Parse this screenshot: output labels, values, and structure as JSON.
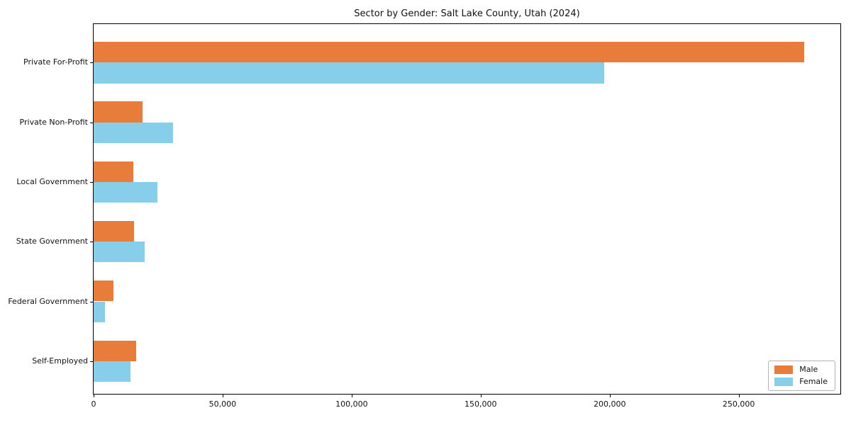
{
  "chart_data": {
    "type": "bar",
    "orientation": "horizontal",
    "title": "Sector by Gender: Salt Lake County, Utah (2024)",
    "categories": [
      "Private For-Profit",
      "Private Non-Profit",
      "Local Government",
      "State Government",
      "Federal Government",
      "Self-Employed"
    ],
    "series": [
      {
        "name": "Male",
        "color": "#e87d3b",
        "values": [
          275500,
          19100,
          15400,
          15700,
          7800,
          16400
        ]
      },
      {
        "name": "Female",
        "color": "#87ceeb",
        "values": [
          198000,
          30800,
          24600,
          19800,
          4500,
          14200
        ]
      }
    ],
    "xlabel": "",
    "ylabel": "",
    "xlim": [
      0,
      289400
    ],
    "xticks": [
      0,
      50000,
      100000,
      150000,
      200000,
      250000
    ],
    "xtick_labels": [
      "0",
      "50,000",
      "100,000",
      "150,000",
      "200,000",
      "250,000"
    ],
    "legend": {
      "position": "lower right"
    },
    "grid": false,
    "background_color": "#ffffff",
    "frame_color": "#000000"
  }
}
